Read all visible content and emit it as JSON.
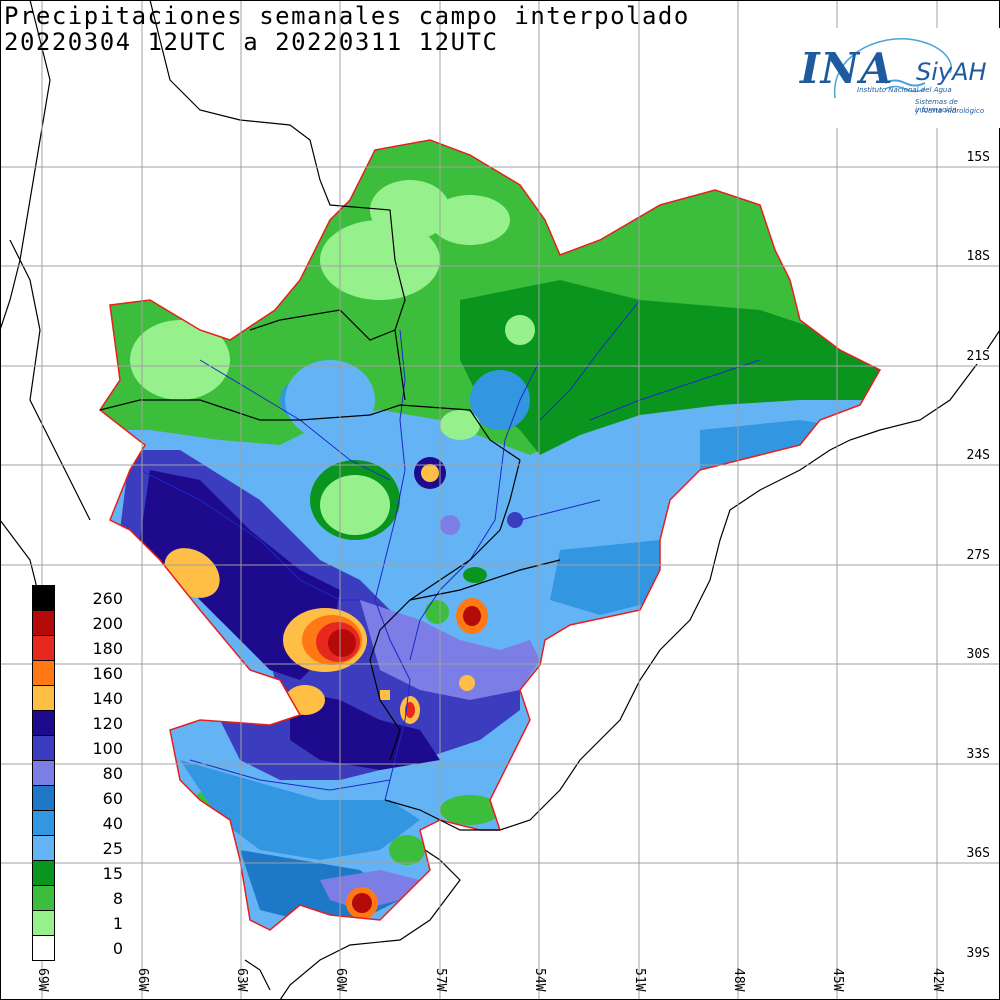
{
  "title": {
    "line1": "Precipitaciones semanales campo interpolado",
    "line2": "20220304 12UTC a 20220311 12UTC"
  },
  "logo": {
    "name": "INA",
    "product": "SiyAH",
    "subtitle_1": "Instituto Nacional del Agua",
    "subtitle_2": "Sistemas de información",
    "subtitle_3": "y Alerta Hidrológico"
  },
  "latitude_labels": [
    "15S",
    "18S",
    "21S",
    "24S",
    "27S",
    "30S",
    "33S",
    "36S",
    "39S"
  ],
  "longitude_labels": [
    "69W",
    "66W",
    "63W",
    "60W",
    "57W",
    "54W",
    "51W",
    "48W",
    "45W",
    "42W"
  ],
  "legend": {
    "units": "",
    "classes": [
      {
        "label": "260",
        "color": "#000000"
      },
      {
        "label": "200",
        "color": "#b40a0a"
      },
      {
        "label": "180",
        "color": "#e6281e"
      },
      {
        "label": "160",
        "color": "#ff7814"
      },
      {
        "label": "140",
        "color": "#ffbe46"
      },
      {
        "label": "120",
        "color": "#1e0a8c"
      },
      {
        "label": "100",
        "color": "#3c3cbe"
      },
      {
        "label": "80",
        "color": "#7d7de6"
      },
      {
        "label": "60",
        "color": "#1e78c8"
      },
      {
        "label": "40",
        "color": "#3296e1"
      },
      {
        "label": "25",
        "color": "#64b4f5"
      },
      {
        "label": "15",
        "color": "#0a961e"
      },
      {
        "label": "8",
        "color": "#3cbe3c"
      },
      {
        "label": "1",
        "color": "#96f08c"
      },
      {
        "label": "0",
        "color": "#ffffff"
      }
    ]
  },
  "map_colors": {
    "basin_outline": "#e61e1e",
    "rivers": "#1e28c8",
    "borders": "#000000",
    "grid": "#a0a0a0"
  }
}
